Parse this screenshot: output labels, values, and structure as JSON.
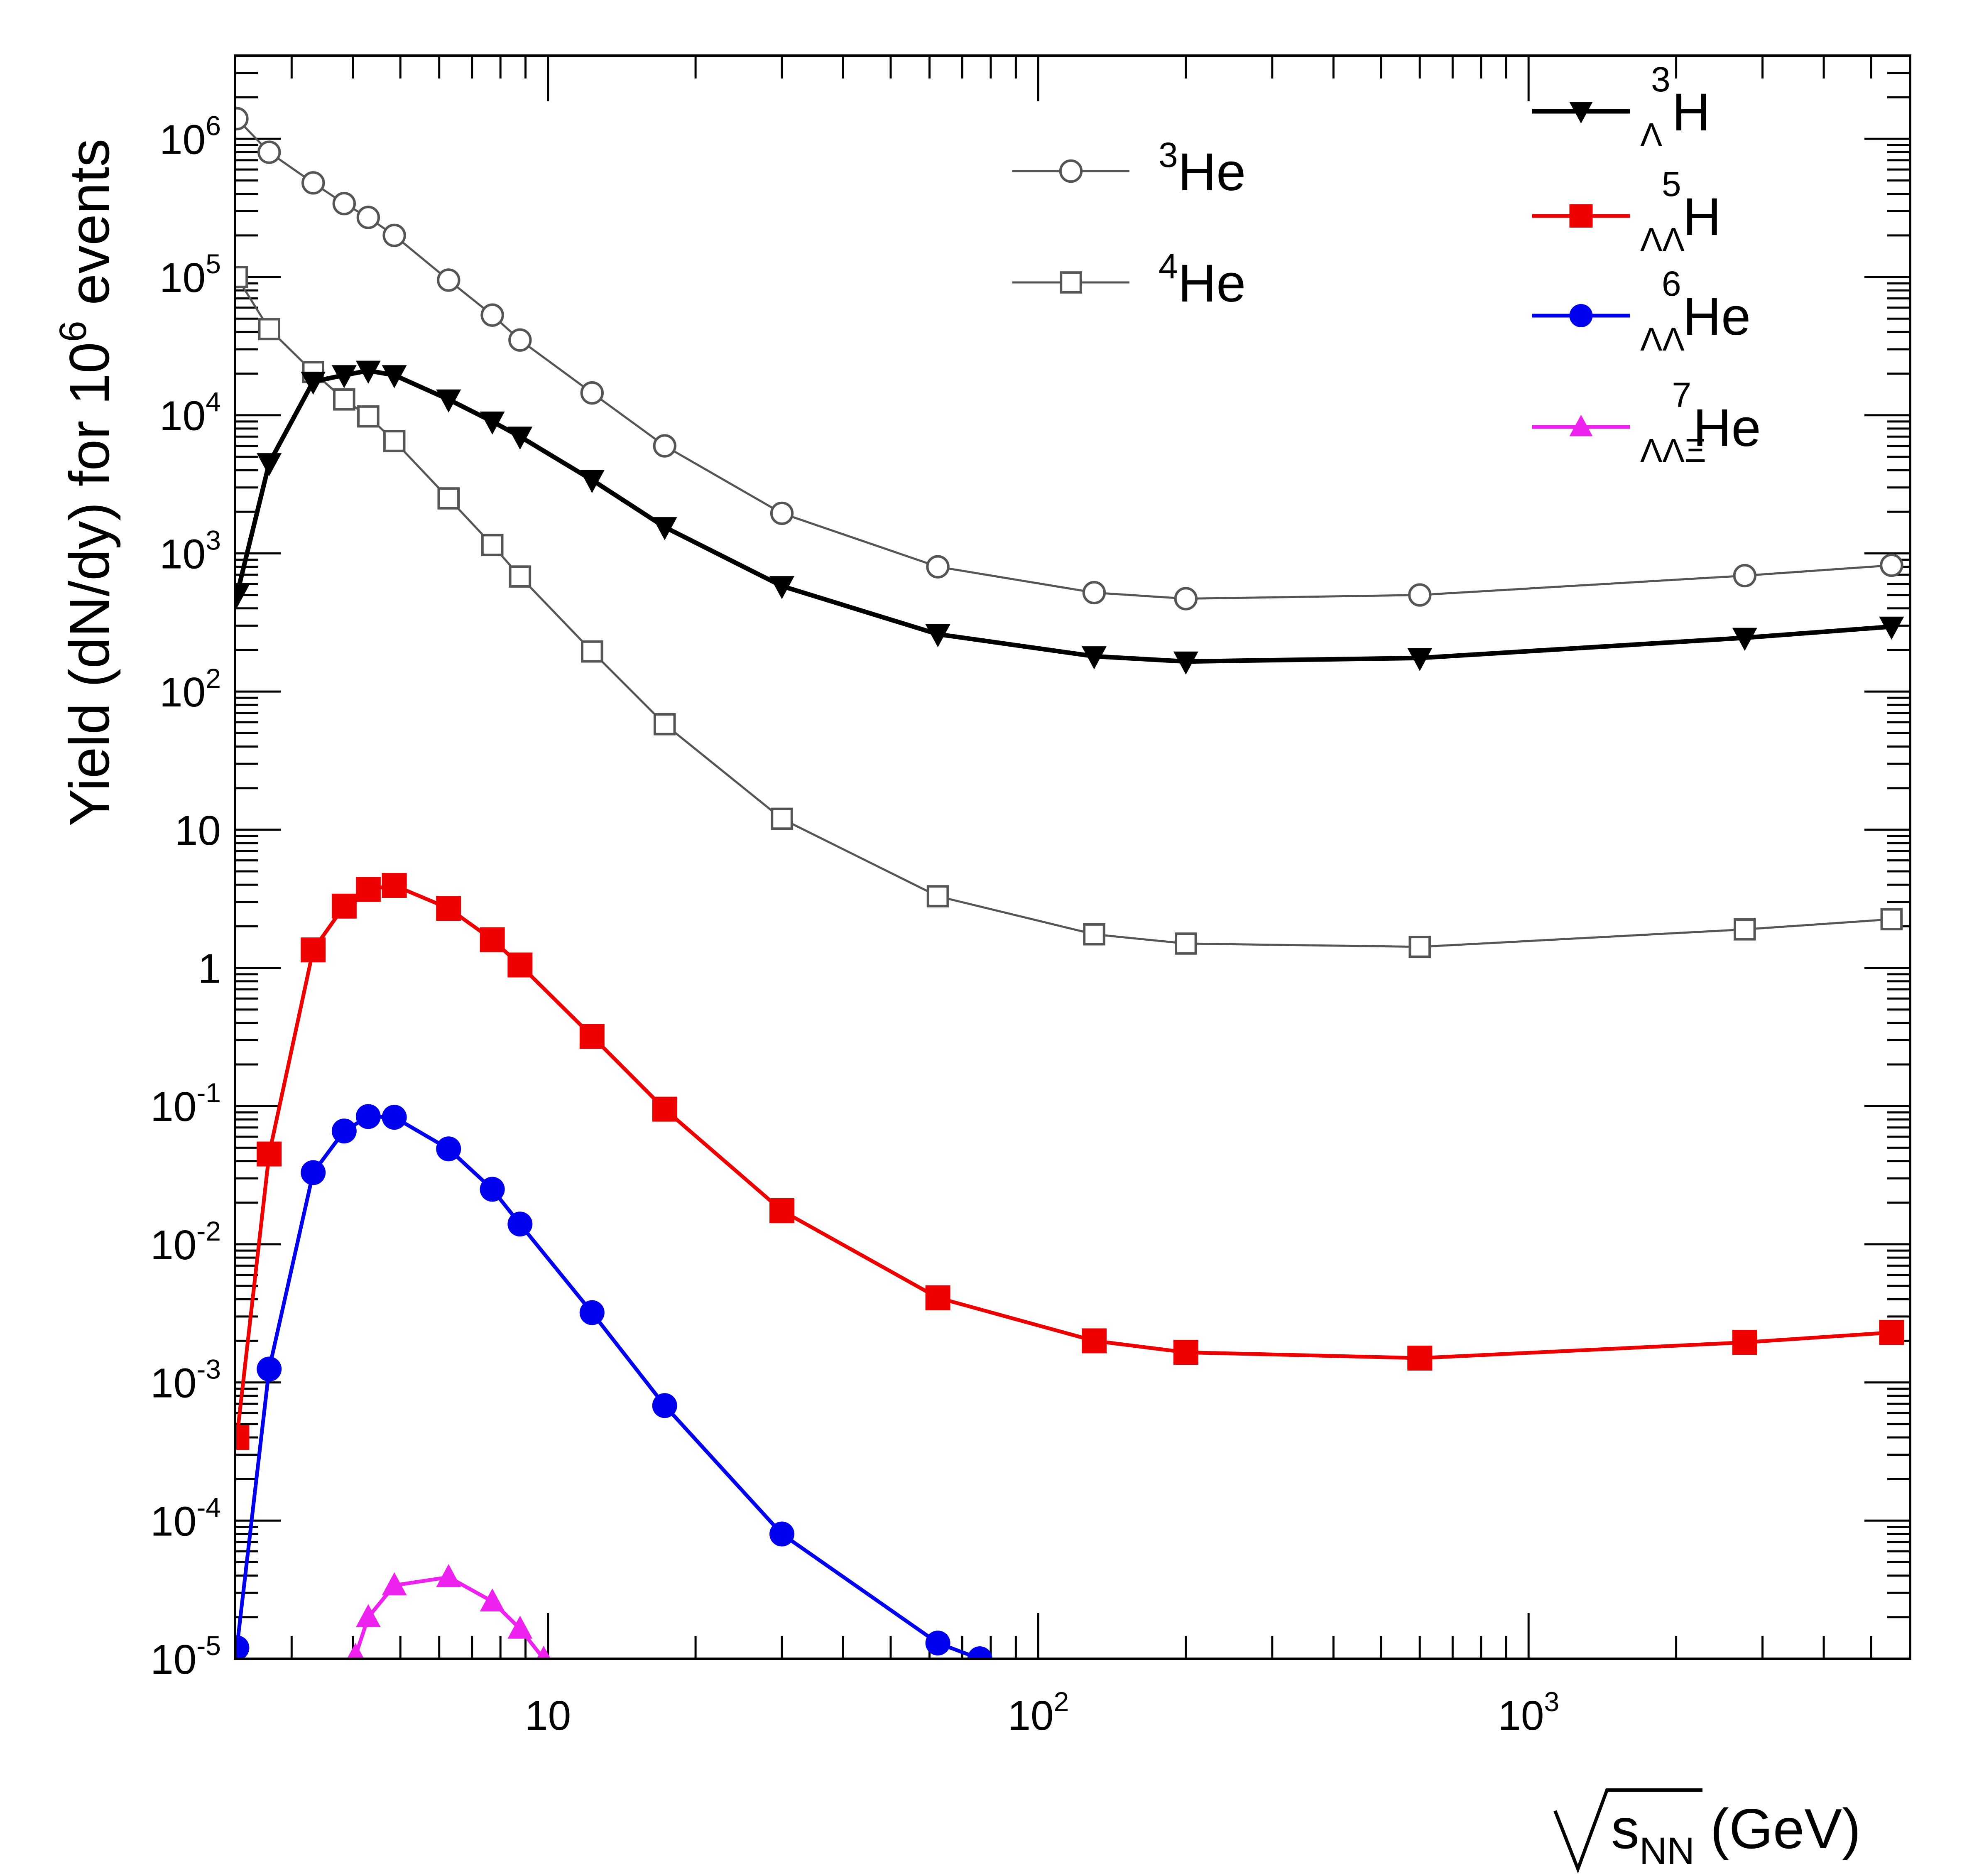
{
  "chart_data": {
    "type": "line",
    "title": "",
    "xscale": "log",
    "yscale": "log",
    "xlim": [
      2.3,
      6000
    ],
    "ylim": [
      1e-05,
      4000000.0
    ],
    "xlabel": {
      "symbol": "s",
      "sub": "NN",
      "unit": "(GeV)"
    },
    "ylabel": {
      "main": "Yield (dN/dy) for 10",
      "sup": "6",
      "tail": " events"
    },
    "x_ticks": [
      {
        "value": 10,
        "base": "10",
        "sup": ""
      },
      {
        "value": 100,
        "base": "10",
        "sup": "2"
      },
      {
        "value": 1000,
        "base": "10",
        "sup": "3"
      }
    ],
    "y_ticks": [
      {
        "value": 1000000.0,
        "base": "10",
        "sup": "6"
      },
      {
        "value": 100000.0,
        "base": "10",
        "sup": "5"
      },
      {
        "value": 10000.0,
        "base": "10",
        "sup": "4"
      },
      {
        "value": 1000.0,
        "base": "10",
        "sup": "3"
      },
      {
        "value": 100.0,
        "base": "10",
        "sup": "2"
      },
      {
        "value": 10,
        "base": "10",
        "sup": ""
      },
      {
        "value": 1,
        "base": "1",
        "sup": ""
      },
      {
        "value": 0.1,
        "base": "10",
        "sup": "-1"
      },
      {
        "value": 0.01,
        "base": "10",
        "sup": "-2"
      },
      {
        "value": 0.001,
        "base": "10",
        "sup": "-3"
      },
      {
        "value": 0.0001,
        "base": "10",
        "sup": "-4"
      },
      {
        "value": 1e-05,
        "base": "10",
        "sup": "-5"
      }
    ],
    "legend_left": {
      "position": "top-center",
      "entries": [
        "he3",
        "he4"
      ]
    },
    "legend_right": {
      "position": "top-right",
      "entries": [
        "h3l",
        "h5ll",
        "he6ll",
        "he7llx"
      ]
    },
    "series": [
      {
        "id": "he3",
        "label": {
          "sup": "3",
          "sub": "",
          "base": "He"
        },
        "color": "#555555",
        "marker": "open-circle",
        "line_width": 5,
        "x": [
          2.32,
          2.7,
          3.32,
          3.84,
          4.3,
          4.86,
          6.27,
          7.7,
          8.77,
          12.3,
          17.3,
          30,
          62.4,
          130,
          200,
          600,
          2760,
          5500
        ],
        "y": [
          1400000,
          800000,
          480000,
          340000,
          270000,
          200000,
          95000,
          53000,
          35000,
          14500,
          6000,
          1950,
          800,
          520,
          470,
          500,
          690,
          820
        ]
      },
      {
        "id": "he4",
        "label": {
          "sup": "4",
          "sub": "",
          "base": "He"
        },
        "color": "#555555",
        "marker": "open-square",
        "line_width": 5,
        "x": [
          2.32,
          2.7,
          3.32,
          3.84,
          4.3,
          4.86,
          6.27,
          7.7,
          8.77,
          12.3,
          17.3,
          30,
          62.4,
          130,
          200,
          600,
          2760,
          5500
        ],
        "y": [
          100000,
          42000,
          20500,
          13000,
          9800,
          6500,
          2500,
          1150,
          680,
          195,
          58,
          12,
          3.3,
          1.75,
          1.5,
          1.42,
          1.9,
          2.25
        ]
      },
      {
        "id": "h3l",
        "label": {
          "sup": "3",
          "sub": "Λ",
          "base": "H"
        },
        "color": "#000000",
        "marker": "filled-triangle-down",
        "line_width": 11,
        "x": [
          2.32,
          2.7,
          3.32,
          3.84,
          4.3,
          4.86,
          6.27,
          7.7,
          8.77,
          12.3,
          17.3,
          30,
          62.4,
          130,
          200,
          600,
          2760,
          5500
        ],
        "y": [
          500,
          4500,
          17500,
          19500,
          21000,
          19500,
          13000,
          9000,
          7000,
          3400,
          1550,
          580,
          260,
          180,
          165,
          175,
          245,
          295
        ]
      },
      {
        "id": "h5ll",
        "label": {
          "sup": "5",
          "sub": "ΛΛ",
          "base": "H"
        },
        "color": "#ee0000",
        "marker": "filled-square",
        "line_width": 9,
        "x": [
          2.32,
          2.7,
          3.32,
          3.84,
          4.3,
          4.86,
          6.27,
          7.7,
          8.77,
          12.3,
          17.3,
          30,
          62.4,
          130,
          200,
          600,
          2760,
          5500
        ],
        "y": [
          0.0004,
          0.045,
          1.35,
          2.8,
          3.7,
          3.95,
          2.7,
          1.6,
          1.05,
          0.32,
          0.095,
          0.0175,
          0.0041,
          0.002,
          0.00165,
          0.0015,
          0.00195,
          0.0023
        ]
      },
      {
        "id": "he6ll",
        "label": {
          "sup": "6",
          "sub": "ΛΛ",
          "base": "He"
        },
        "color": "#0000ee",
        "marker": "filled-circle",
        "line_width": 9,
        "x": [
          2.32,
          2.7,
          3.32,
          3.84,
          4.3,
          4.86,
          6.27,
          7.7,
          8.77,
          12.3,
          17.3,
          30,
          62.4,
          76
        ],
        "y": [
          1.2e-05,
          0.00125,
          0.033,
          0.066,
          0.084,
          0.083,
          0.049,
          0.025,
          0.014,
          0.0032,
          0.00068,
          8e-05,
          1.3e-05,
          1e-05
        ]
      },
      {
        "id": "he7llx",
        "label": {
          "sup": "7",
          "sub": "ΛΛΞ",
          "base": "He"
        },
        "color": "#ee22ee",
        "marker": "filled-triangle-up",
        "line_width": 9,
        "x": [
          4.05,
          4.3,
          4.86,
          6.27,
          7.7,
          8.77,
          9.8
        ],
        "y": [
          1.05e-05,
          2e-05,
          3.4e-05,
          3.9e-05,
          2.6e-05,
          1.65e-05,
          1e-05
        ]
      }
    ]
  }
}
